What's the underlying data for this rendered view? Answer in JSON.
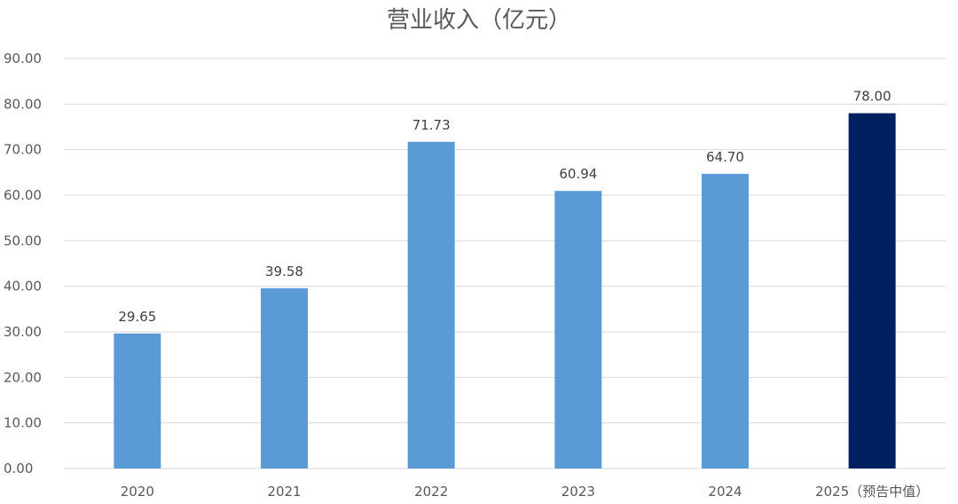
{
  "chart_data": {
    "type": "bar",
    "title": "营业收入（亿元）",
    "categories": [
      "2020",
      "2021",
      "2022",
      "2023",
      "2024",
      "2025（预告中值）"
    ],
    "values": [
      29.65,
      39.58,
      71.73,
      60.94,
      64.7,
      78.0
    ],
    "data_labels": [
      "29.65",
      "39.58",
      "71.73",
      "60.94",
      "64.70",
      "78.00"
    ],
    "y_ticks": [
      "0.00",
      "10.00",
      "20.00",
      "30.00",
      "40.00",
      "50.00",
      "60.00",
      "70.00",
      "80.00",
      "90.00"
    ],
    "ylim": [
      0,
      90
    ],
    "grid": true,
    "legend": "none",
    "colors": {
      "actual": "#5B9BD5",
      "forecast": "#002060",
      "grid": "#D9D9D9"
    }
  }
}
